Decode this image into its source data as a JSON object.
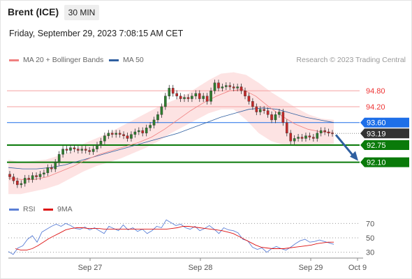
{
  "header": {
    "instrument": "Brent (ICE)",
    "timeframe": "30 MIN",
    "timestamp": "Friday, September 29, 2023 7:08:15 AM CET",
    "credit": "Research © 2023 Trading Central"
  },
  "legend": {
    "ma20": {
      "label": "MA 20 + Bollinger Bands",
      "color": "#f08080"
    },
    "ma50": {
      "label": "MA 50",
      "color": "#2f5fa0"
    },
    "rsi": {
      "label": "RSI",
      "color": "#5b7fd6"
    },
    "rsi_ma": {
      "label": "9MA",
      "color": "#dd1111"
    }
  },
  "chart_data": [
    {
      "type": "candlestick",
      "x_labels": [
        "Sep 27",
        "Sep 28",
        "Sep 29",
        "Oct 9"
      ],
      "ylim": [
        90.8,
        95.7
      ],
      "price_levels": [
        {
          "label": "94.80",
          "value": 94.8,
          "kind": "resistance",
          "color": "#f5a0a0"
        },
        {
          "label": "94.20",
          "value": 94.2,
          "kind": "resistance",
          "color": "#f5a0a0"
        },
        {
          "label": "93.60",
          "value": 93.6,
          "kind": "pivot",
          "color": "#1e6fe8"
        },
        {
          "label": "93.19",
          "value": 93.19,
          "kind": "last-price",
          "color": "#333333"
        },
        {
          "label": "92.75",
          "value": 92.75,
          "kind": "support",
          "color": "#0a7a0a"
        },
        {
          "label": "92.10",
          "value": 92.1,
          "kind": "support",
          "color": "#0a7a0a"
        }
      ],
      "close_series": [
        91.55,
        91.4,
        91.25,
        91.3,
        91.5,
        91.45,
        91.6,
        91.55,
        91.65,
        91.7,
        91.9,
        91.85,
        92.1,
        92.4,
        92.6,
        92.55,
        92.65,
        92.6,
        92.55,
        92.6,
        92.55,
        92.5,
        92.6,
        92.75,
        92.9,
        93.1,
        93.2,
        93.15,
        93.2,
        93.15,
        93.1,
        93.0,
        93.15,
        93.25,
        93.3,
        93.2,
        93.4,
        93.5,
        93.7,
        93.9,
        94.2,
        94.6,
        94.9,
        94.7,
        94.6,
        94.5,
        94.55,
        94.5,
        94.6,
        94.7,
        94.5,
        94.6,
        94.4,
        94.8,
        95.1,
        94.9,
        94.95,
        95.0,
        94.95,
        94.9,
        94.95,
        94.8,
        94.6,
        94.4,
        94.2,
        94.0,
        94.1,
        94.05,
        93.9,
        93.7,
        93.9,
        94.0,
        93.6,
        93.2,
        92.9,
        93.0,
        93.05,
        93.0,
        93.1,
        93.05,
        93.0,
        93.2,
        93.3,
        93.25,
        93.2,
        93.19
      ],
      "bollinger": {
        "upper": [
          92.2,
          92.1,
          92.15,
          92.2,
          92.35,
          92.5,
          92.8,
          93.0,
          93.2,
          93.45,
          93.7,
          93.95,
          94.2,
          94.4,
          94.6,
          94.9,
          95.2,
          95.45,
          95.5,
          95.4,
          95.1,
          94.75,
          94.45,
          94.15,
          93.9,
          93.75,
          93.7
        ],
        "lower": [
          90.9,
          90.9,
          91.0,
          91.1,
          91.25,
          91.5,
          91.75,
          91.95,
          92.1,
          92.25,
          92.45,
          92.65,
          92.9,
          93.2,
          93.45,
          93.7,
          93.95,
          94.1,
          94.1,
          93.7,
          93.2,
          92.9,
          92.75,
          92.7,
          92.7,
          92.75,
          92.8
        ]
      },
      "ma20": [
        91.5,
        91.45,
        91.45,
        91.55,
        91.75,
        91.95,
        92.2,
        92.4,
        92.55,
        92.7,
        92.85,
        93.05,
        93.35,
        93.7,
        94.05,
        94.35,
        94.6,
        94.8,
        94.85,
        94.6,
        94.2,
        93.85,
        93.55,
        93.35,
        93.25,
        93.22
      ],
      "ma50": [
        91.9,
        91.85,
        91.85,
        91.9,
        92.0,
        92.15,
        92.3,
        92.45,
        92.6,
        92.75,
        92.9,
        93.05,
        93.2,
        93.4,
        93.6,
        93.8,
        93.95,
        94.1,
        94.15,
        94.1,
        93.95,
        93.8,
        93.7,
        93.6
      ],
      "forecast_arrow": {
        "from": 93.19,
        "to": 92.1,
        "color": "#2f5fa0"
      }
    },
    {
      "type": "line",
      "x_labels": [
        "Sep 27",
        "Sep 28",
        "Sep 29",
        "Oct 9"
      ],
      "ylim": [
        20,
        80
      ],
      "y_ticks": [
        {
          "label": "70",
          "value": 70
        },
        {
          "label": "50",
          "value": 50
        },
        {
          "label": "30",
          "value": 30
        }
      ],
      "series": [
        {
          "name": "RSI",
          "values": [
            31,
            27,
            36,
            39,
            48,
            53,
            44,
            58,
            62,
            66,
            69,
            66,
            70,
            67,
            63,
            62,
            65,
            61,
            64,
            60,
            56,
            66,
            63,
            60,
            68,
            61,
            64,
            59,
            62,
            56,
            60,
            66,
            64,
            75,
            71,
            67,
            69,
            64,
            62,
            66,
            60,
            63,
            67,
            62,
            56,
            64,
            61,
            60,
            57,
            48,
            46,
            37,
            34,
            36,
            30,
            35,
            38,
            35,
            33,
            37,
            42,
            46,
            48,
            44,
            45,
            47,
            45,
            43,
            41
          ]
        },
        {
          "name": "9MA",
          "values": [
            35,
            33,
            33,
            35,
            39,
            44,
            49,
            53,
            57,
            61,
            63,
            64,
            64,
            63,
            63,
            63,
            62,
            62,
            62,
            62,
            62,
            62,
            62,
            62,
            62,
            62,
            62,
            62,
            63,
            64,
            66,
            66,
            65,
            64,
            63,
            62,
            61,
            60,
            58,
            56,
            52,
            48,
            44,
            40,
            37,
            36,
            35,
            35,
            35,
            36,
            37,
            38,
            39,
            40,
            42,
            43,
            44,
            44
          ]
        }
      ]
    }
  ]
}
